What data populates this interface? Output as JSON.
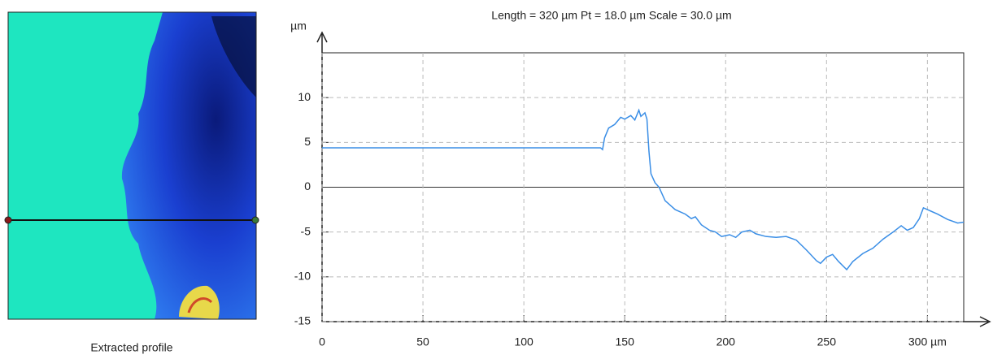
{
  "caption": "Extracted profile",
  "chart_data": {
    "type": "line",
    "title": "Length = 320 µm  Pt = 18.0 µm  Scale = 30.0 µm",
    "y_unit": "µm",
    "x": [
      0,
      138,
      139,
      140,
      142,
      145,
      148,
      150,
      153,
      155,
      157,
      158,
      160,
      161,
      162,
      163,
      165,
      167,
      170,
      175,
      180,
      183,
      185,
      188,
      192,
      195,
      198,
      202,
      205,
      208,
      212,
      215,
      220,
      225,
      230,
      235,
      240,
      245,
      247,
      250,
      253,
      256,
      260,
      263,
      268,
      273,
      278,
      283,
      287,
      290,
      293,
      296,
      298,
      300,
      305,
      310,
      315,
      318
    ],
    "series": [
      {
        "color": "#3a8ee6",
        "values": [
          4.4,
          4.4,
          4.2,
          5.5,
          6.6,
          7.0,
          7.8,
          7.6,
          8.0,
          7.5,
          8.6,
          7.9,
          8.3,
          7.6,
          4.0,
          1.5,
          0.5,
          0,
          -1.5,
          -2.5,
          -3.0,
          -3.5,
          -3.3,
          -4.2,
          -4.8,
          -5.0,
          -5.5,
          -5.3,
          -5.6,
          -5.0,
          -4.8,
          -5.2,
          -5.5,
          -5.6,
          -5.5,
          -5.9,
          -7.0,
          -8.2,
          -8.5,
          -7.8,
          -7.5,
          -8.3,
          -9.2,
          -8.3,
          -7.4,
          -6.8,
          -5.8,
          -5.0,
          -4.3,
          -4.8,
          -4.5,
          -3.5,
          -2.3,
          -2.5,
          -3.0,
          -3.6,
          -4.0,
          -3.9
        ]
      }
    ],
    "xlim": [
      0,
      320
    ],
    "xticks": [
      0,
      50,
      100,
      150,
      200,
      250,
      {
        "value": 300,
        "label": "300 µm"
      }
    ],
    "ylim": [
      -15,
      15
    ],
    "yticks": [
      -15,
      -10,
      -5,
      0,
      5,
      10
    ],
    "grid": true
  }
}
